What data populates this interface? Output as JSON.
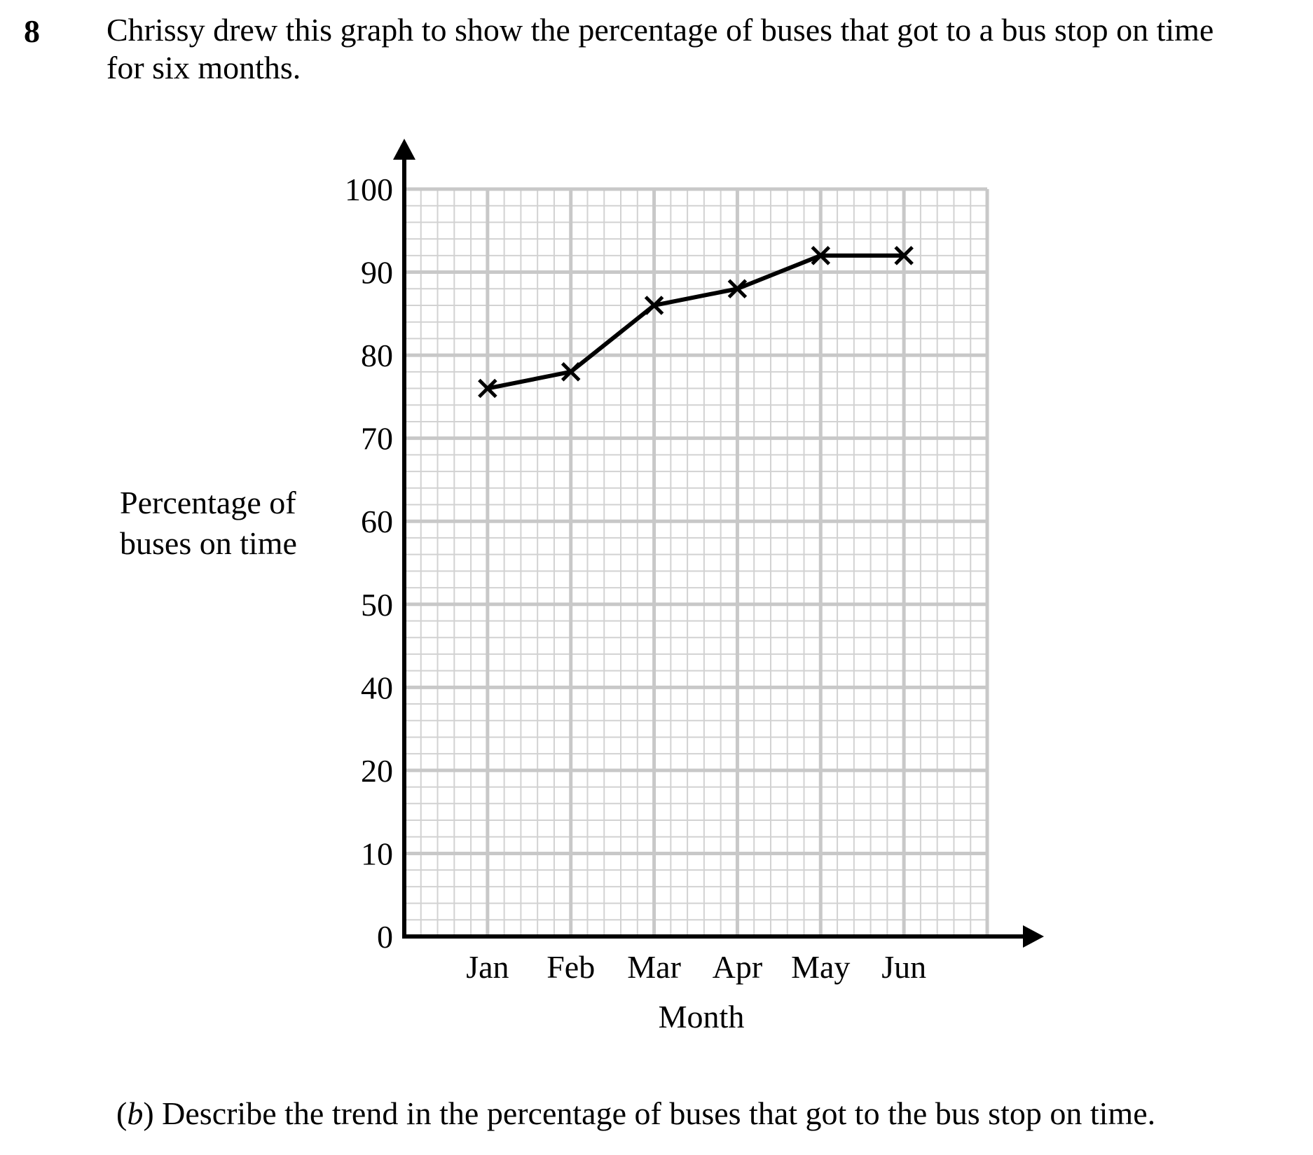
{
  "question": {
    "number": "8",
    "text_line1": "Chrissy drew this graph to show the percentage of buses that got to a bus stop on time",
    "text_line2": "for six months."
  },
  "part_b": {
    "label": "b",
    "text": "Describe the trend in the percentage of buses that got to the bus stop on time."
  },
  "chart_data": {
    "type": "line",
    "categories": [
      "Jan",
      "Feb",
      "Mar",
      "Apr",
      "May",
      "Jun"
    ],
    "values": [
      76,
      78,
      86,
      88,
      92,
      92
    ],
    "xlabel": "Month",
    "ylabel_line1": "Percentage of",
    "ylabel_line2": "buses on time",
    "y_tick_labels": [
      "0",
      "10",
      "20",
      "40",
      "50",
      "60",
      "70",
      "80",
      "90",
      "100"
    ],
    "ylim": [
      0,
      100
    ],
    "grid": true,
    "marker": "cross",
    "colors": {
      "line": "#000000",
      "grid_major": "#c8c8c8",
      "grid_minor": "#d2d2d2"
    }
  }
}
